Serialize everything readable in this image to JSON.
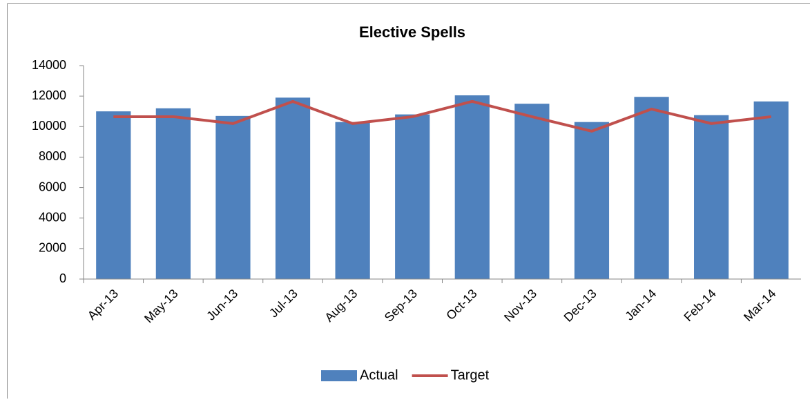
{
  "chart_data": {
    "type": "bar",
    "title": "Elective Spells",
    "categories": [
      "Apr-13",
      "May-13",
      "Jun-13",
      "Jul-13",
      "Aug-13",
      "Sep-13",
      "Oct-13",
      "Nov-13",
      "Dec-13",
      "Jan-14",
      "Feb-14",
      "Mar-14"
    ],
    "series": [
      {
        "name": "Actual",
        "type": "bar",
        "color": "#4f81bd",
        "values": [
          11000,
          11200,
          10700,
          11900,
          10300,
          10800,
          12050,
          11500,
          10300,
          11950,
          10750,
          11650
        ]
      },
      {
        "name": "Target",
        "type": "line",
        "color": "#c0504d",
        "values": [
          10650,
          10650,
          10200,
          11650,
          10200,
          10650,
          11650,
          10650,
          9700,
          11150,
          10200,
          10650
        ]
      }
    ],
    "ylim": [
      0,
      14000
    ],
    "yticks": [
      0,
      2000,
      4000,
      6000,
      8000,
      10000,
      12000,
      14000
    ],
    "grid": false,
    "legend": "bottom"
  }
}
